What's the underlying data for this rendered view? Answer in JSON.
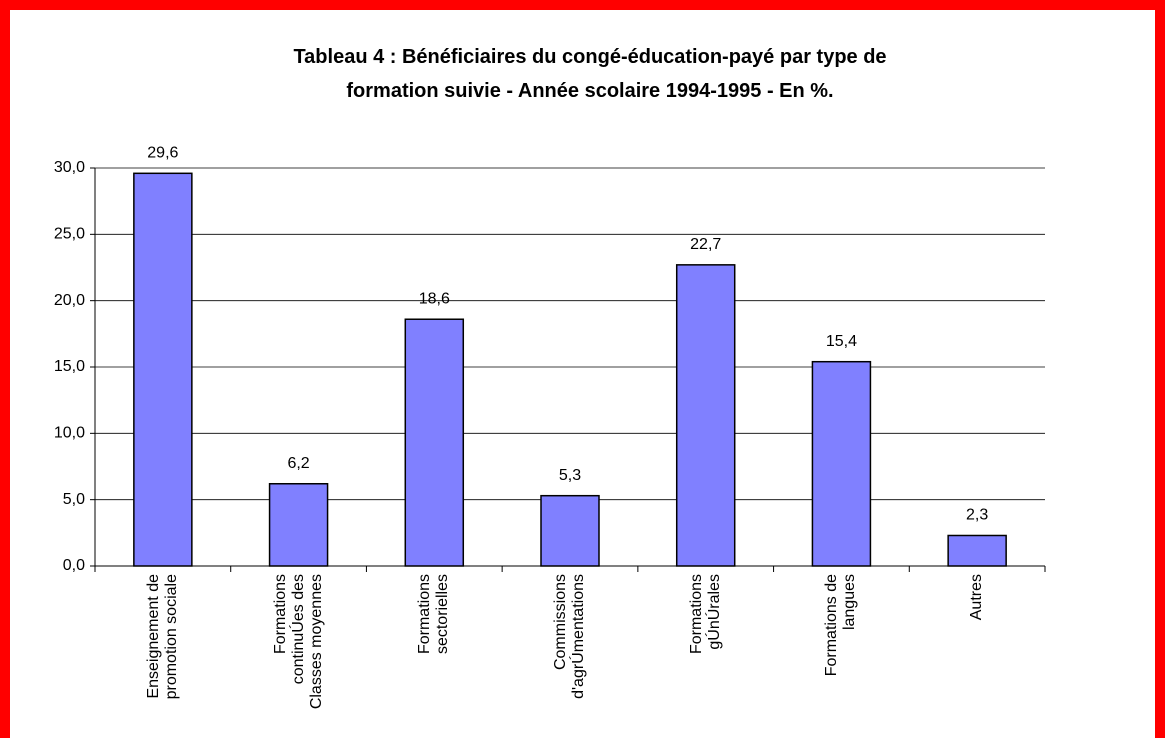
{
  "chart_data": {
    "type": "bar",
    "title": "Tableau 4 : Bénéficiaires du congé-éducation-payé par type de formation suivie - Année scolaire 1994-1995 - En %.",
    "categories": [
      "Enseignement de promotion sociale",
      "Formations continuÚes des Classes moyennes",
      "Formations sectorielles",
      "Commissions d'agrÚmentations",
      "Formations gÚnÚrales",
      "Formations de langues",
      "Autres"
    ],
    "values": [
      29.6,
      6.2,
      18.6,
      5.3,
      22.7,
      15.4,
      2.3
    ],
    "value_labels": [
      "29,6",
      "6,2",
      "18,6",
      "5,3",
      "22,7",
      "15,4",
      "2,3"
    ],
    "color": "#8080ff",
    "ylim": [
      0,
      30
    ],
    "yticks": [
      {
        "value": 0,
        "label": "0,0"
      },
      {
        "value": 5,
        "label": "5,0"
      },
      {
        "value": 10,
        "label": "10,0"
      },
      {
        "value": 15,
        "label": "15,0"
      },
      {
        "value": 20,
        "label": "20,0"
      },
      {
        "value": 25,
        "label": "25,0"
      },
      {
        "value": 30,
        "label": "30,0"
      }
    ],
    "grid": true
  }
}
